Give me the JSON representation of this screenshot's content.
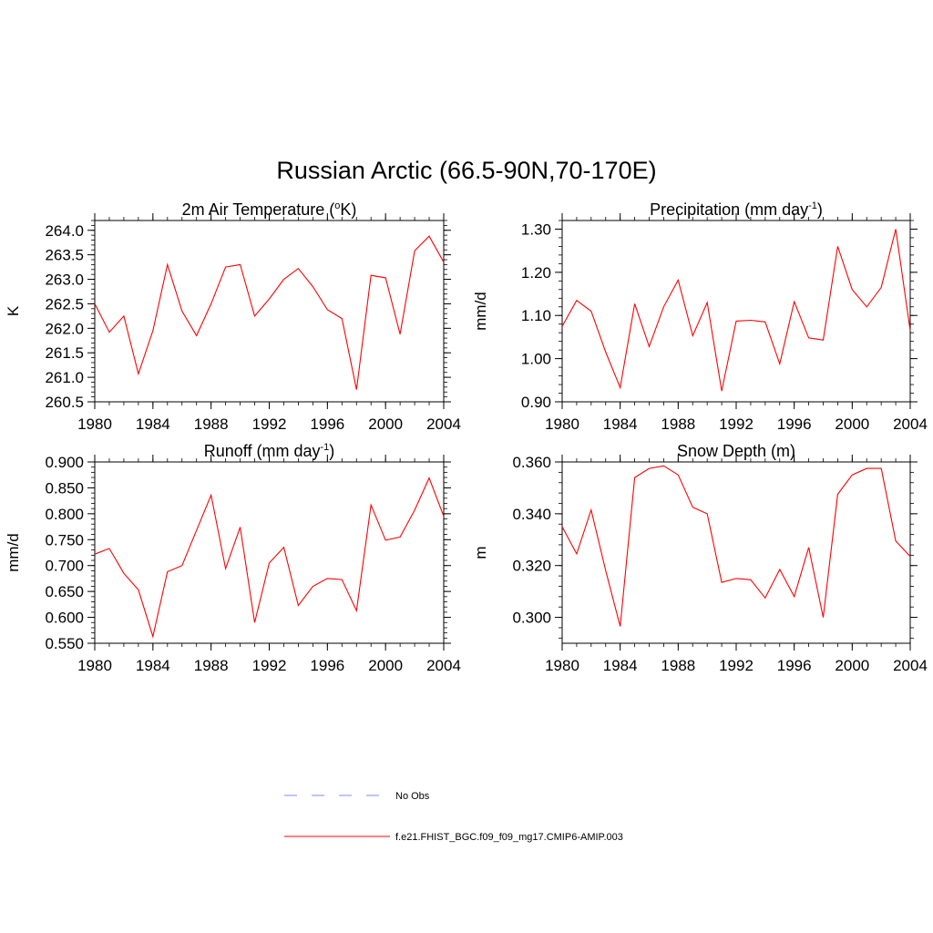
{
  "figure_title": "Russian Arctic (66.5-90N,70-170E)",
  "colors": {
    "model_line": "#ff0000",
    "obs_line": "#9aa0ff",
    "axis": "#000000"
  },
  "legend": [
    {
      "label": "No Obs",
      "style": "dashed",
      "color": "#9aa0ff"
    },
    {
      "label": "f.e21.FHIST_BGC.f09_f09_mg17.CMIP6-AMIP.003",
      "style": "solid",
      "color": "#ff0000"
    }
  ],
  "chart_data": [
    {
      "type": "line",
      "title": "2m Air Temperature (",
      "title_sup": "o",
      "title_after": "K)",
      "ylabel": "K",
      "ylim": [
        260.5,
        264.2
      ],
      "yticks": [
        260.5,
        261.0,
        261.5,
        262.0,
        262.5,
        263.0,
        263.5,
        264.0
      ],
      "ytick_labels": [
        "260.5",
        "261.0",
        "261.5",
        "262.0",
        "262.5",
        "263.0",
        "263.5",
        "264.0"
      ],
      "yminor": 0.1,
      "xlim": [
        1980,
        2004
      ],
      "xticks": [
        1980,
        1984,
        1988,
        1992,
        1996,
        2000,
        2004
      ],
      "xtick_labels": [
        "1980",
        "1984",
        "1988",
        "1992",
        "1996",
        "2000",
        "2004"
      ],
      "series": [
        {
          "name": "f.e21.FHIST_BGC.f09_f09_mg17.CMIP6-AMIP.003",
          "x": [
            1980,
            1981,
            1982,
            1983,
            1984,
            1985,
            1986,
            1987,
            1988,
            1989,
            1990,
            1991,
            1992,
            1993,
            1994,
            1995,
            1996,
            1997,
            1998,
            1999,
            2000,
            2001,
            2002,
            2003,
            2004
          ],
          "y": [
            262.5,
            261.92,
            262.25,
            261.07,
            261.95,
            263.3,
            262.35,
            261.85,
            262.5,
            263.25,
            263.3,
            262.25,
            262.6,
            263.0,
            263.22,
            262.85,
            262.38,
            262.2,
            260.75,
            263.08,
            263.03,
            261.88,
            263.58,
            263.88,
            263.35
          ]
        }
      ]
    },
    {
      "type": "line",
      "title": "Precipitation (mm day",
      "title_sup": "-1",
      "title_after": ")",
      "ylabel": "mm/d",
      "ylim": [
        0.9,
        1.32
      ],
      "yticks": [
        0.9,
        1.0,
        1.1,
        1.2,
        1.3
      ],
      "ytick_labels": [
        "0.90",
        "1.00",
        "1.10",
        "1.20",
        "1.30"
      ],
      "yminor": 0.02,
      "xlim": [
        1980,
        2004
      ],
      "xticks": [
        1980,
        1984,
        1988,
        1992,
        1996,
        2000,
        2004
      ],
      "xtick_labels": [
        "1980",
        "1984",
        "1988",
        "1992",
        "1996",
        "2000",
        "2004"
      ],
      "series": [
        {
          "name": "f.e21.FHIST_BGC.f09_f09_mg17.CMIP6-AMIP.003",
          "x": [
            1980,
            1981,
            1982,
            1983,
            1984,
            1985,
            1986,
            1987,
            1988,
            1989,
            1990,
            1991,
            1992,
            1993,
            1994,
            1995,
            1996,
            1997,
            1998,
            1999,
            2000,
            2001,
            2002,
            2003,
            2004
          ],
          "y": [
            1.075,
            1.135,
            1.11,
            1.015,
            0.933,
            1.127,
            1.028,
            1.12,
            1.182,
            1.053,
            1.13,
            0.925,
            1.087,
            1.089,
            1.085,
            0.988,
            1.132,
            1.048,
            1.043,
            1.26,
            1.16,
            1.12,
            1.165,
            1.3,
            1.065
          ]
        }
      ]
    },
    {
      "type": "line",
      "title": "Runoff (mm day",
      "title_sup": "-1",
      "title_after": ")",
      "ylabel": "mm/d",
      "ylim": [
        0.55,
        0.9
      ],
      "yticks": [
        0.55,
        0.6,
        0.65,
        0.7,
        0.75,
        0.8,
        0.85,
        0.9
      ],
      "ytick_labels": [
        "0.550",
        "0.600",
        "0.650",
        "0.700",
        "0.750",
        "0.800",
        "0.850",
        "0.900"
      ],
      "yminor": 0.01,
      "xlim": [
        1980,
        2004
      ],
      "xticks": [
        1980,
        1984,
        1988,
        1992,
        1996,
        2000,
        2004
      ],
      "xtick_labels": [
        "1980",
        "1984",
        "1988",
        "1992",
        "1996",
        "2000",
        "2004"
      ],
      "series": [
        {
          "name": "f.e21.FHIST_BGC.f09_f09_mg17.CMIP6-AMIP.003",
          "x": [
            1980,
            1981,
            1982,
            1983,
            1984,
            1985,
            1986,
            1987,
            1988,
            1989,
            1990,
            1991,
            1992,
            1993,
            1994,
            1995,
            1996,
            1997,
            1998,
            1999,
            2000,
            2001,
            2002,
            2003,
            2004
          ],
          "y": [
            0.722,
            0.733,
            0.685,
            0.653,
            0.563,
            0.688,
            0.7,
            0.768,
            0.836,
            0.694,
            0.774,
            0.59,
            0.705,
            0.735,
            0.623,
            0.66,
            0.675,
            0.673,
            0.613,
            0.817,
            0.749,
            0.755,
            0.807,
            0.869,
            0.795
          ]
        }
      ]
    },
    {
      "type": "line",
      "title": "Snow Depth (m)",
      "title_sup": "",
      "title_after": "",
      "ylabel": "m",
      "ylim": [
        0.29,
        0.36
      ],
      "yticks": [
        0.3,
        0.32,
        0.34,
        0.36
      ],
      "ytick_labels": [
        "0.300",
        "0.320",
        "0.340",
        "0.360"
      ],
      "yminor": 0.004,
      "xlim": [
        1980,
        2004
      ],
      "xticks": [
        1980,
        1984,
        1988,
        1992,
        1996,
        2000,
        2004
      ],
      "xtick_labels": [
        "1980",
        "1984",
        "1988",
        "1992",
        "1996",
        "2000",
        "2004"
      ],
      "series": [
        {
          "name": "f.e21.FHIST_BGC.f09_f09_mg17.CMIP6-AMIP.003",
          "x": [
            1980,
            1981,
            1982,
            1983,
            1984,
            1985,
            1986,
            1987,
            1988,
            1989,
            1990,
            1991,
            1992,
            1993,
            1994,
            1995,
            1996,
            1997,
            1998,
            1999,
            2000,
            2001,
            2002,
            2003,
            2004
          ],
          "y": [
            0.335,
            0.3245,
            0.3415,
            0.318,
            0.2965,
            0.354,
            0.3575,
            0.3585,
            0.355,
            0.3425,
            0.34,
            0.3135,
            0.315,
            0.3145,
            0.3075,
            0.3185,
            0.308,
            0.327,
            0.3,
            0.3475,
            0.355,
            0.3575,
            0.3575,
            0.3295,
            0.3235
          ]
        }
      ]
    }
  ]
}
